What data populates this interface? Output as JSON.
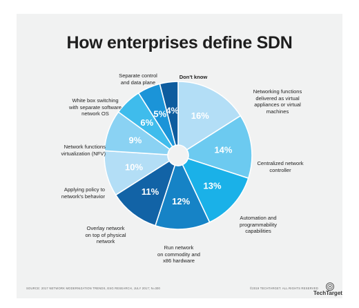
{
  "title": "How enterprises define SDN",
  "chart_data": {
    "type": "pie",
    "style": "donut",
    "title": "How enterprises define SDN",
    "unit": "%",
    "slices": [
      {
        "label": "Networking functions delivered as virtual appliances or virtual machines",
        "value": 16,
        "value_label": "16%",
        "color": "#b3def6"
      },
      {
        "label": "Centralized network controller",
        "value": 14,
        "value_label": "14%",
        "color": "#6ccaf0"
      },
      {
        "label": "Automation and programmability capabilities",
        "value": 13,
        "value_label": "13%",
        "color": "#1ab1e8"
      },
      {
        "label": "Run network on commodity and x86 hardware",
        "value": 12,
        "value_label": "12%",
        "color": "#1683c6"
      },
      {
        "label": "Overlay network on top of physical network",
        "value": 11,
        "value_label": "11%",
        "color": "#1263a6"
      },
      {
        "label": "Applying policy to network's behavior",
        "value": 10,
        "value_label": "10%",
        "color": "#b3def6"
      },
      {
        "label": "Network functions virtualization (NFV)",
        "value": 9,
        "value_label": "9%",
        "color": "#8ad2f3"
      },
      {
        "label": "White box switching with separate software network OS",
        "value": 6,
        "value_label": "6%",
        "color": "#3fbcec"
      },
      {
        "label": "Separate control and data plane",
        "value": 5,
        "value_label": "5%",
        "color": "#1b94d8"
      },
      {
        "label": "Don't know",
        "value": 4,
        "value_label": "4%",
        "color": "#0e5c9e"
      }
    ]
  },
  "labels": {
    "s0": [
      "Networking functions",
      "delivered as virtual",
      "appliances or virtual",
      "machines"
    ],
    "s1": [
      "Centralized network",
      "controller"
    ],
    "s2": [
      "Automation and",
      "programmability",
      "capabilities"
    ],
    "s3": [
      "Run network",
      "on commodity and",
      "x86 hardware"
    ],
    "s4": [
      "Overlay network",
      "on top of physical",
      "network"
    ],
    "s5": [
      "Applying policy to",
      "network's behavior"
    ],
    "s6": [
      "Network functions",
      "virtualization (NFV)"
    ],
    "s7": [
      "White box switching",
      "with separate software",
      "network OS"
    ],
    "s8": [
      "Separate control",
      "and data plane"
    ],
    "s9": [
      "Don't know"
    ]
  },
  "footer": {
    "source": "SOURCE: 2017 NETWORK MODERNIZATION TRENDS, ESG RESEARCH, JULY 2017; N=300",
    "copyright": "©2019 TECHTARGET. ALL RIGHTS RESERVED",
    "brand": "TechTarget"
  }
}
